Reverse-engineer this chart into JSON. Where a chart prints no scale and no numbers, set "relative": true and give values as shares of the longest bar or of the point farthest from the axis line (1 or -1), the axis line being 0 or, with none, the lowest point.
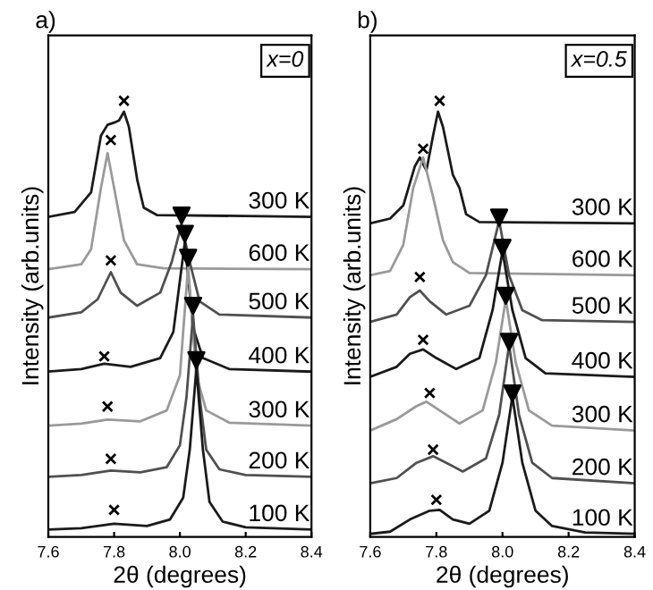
{
  "chart_data": [
    {
      "type": "line",
      "relative": true,
      "title": "a)",
      "xlabel": "2θ (degrees)",
      "ylabel": "Intensity (arb.units)",
      "xlim": [
        7.6,
        8.4
      ],
      "xticks": [
        7.6,
        7.8,
        {
          "value": 8.0,
          "label": "8.0"
        },
        8.2,
        8.4
      ],
      "tick_labels": "x",
      "annotations": [
        "x=0"
      ],
      "series": [
        {
          "name": "300 K",
          "color": "#1a1a1a",
          "x": [
            7.6,
            7.68,
            7.73,
            7.76,
            7.78,
            7.8,
            7.815,
            7.83,
            7.845,
            7.87,
            7.89,
            7.93,
            8.4
          ],
          "values": [
            0.734,
            0.745,
            0.79,
            0.92,
            0.945,
            0.95,
            0.955,
            0.975,
            0.94,
            0.82,
            0.755,
            0.738,
            0.734
          ]
        },
        {
          "name": "600 K",
          "color": "#9a9a9a",
          "x": [
            7.6,
            7.7,
            7.73,
            7.76,
            7.78,
            7.8,
            7.83,
            7.87,
            7.95,
            8.4
          ],
          "values": [
            0.614,
            0.625,
            0.66,
            0.8,
            0.88,
            0.8,
            0.68,
            0.625,
            0.616,
            0.614
          ]
        },
        {
          "name": "500 K",
          "color": "#505050",
          "x": [
            7.6,
            7.7,
            7.75,
            7.79,
            7.82,
            7.87,
            7.94,
            7.975,
            8.005,
            8.03,
            8.06,
            8.12,
            8.4
          ],
          "values": [
            0.503,
            0.515,
            0.545,
            0.607,
            0.56,
            0.53,
            0.56,
            0.63,
            0.717,
            0.63,
            0.54,
            0.51,
            0.503
          ]
        },
        {
          "name": "400 K",
          "color": "#1a1a1a",
          "x": [
            7.6,
            7.7,
            7.77,
            7.85,
            7.94,
            7.98,
            8.015,
            8.04,
            8.07,
            8.15,
            8.4
          ],
          "values": [
            0.379,
            0.385,
            0.397,
            0.39,
            0.41,
            0.47,
            0.676,
            0.48,
            0.41,
            0.385,
            0.379
          ]
        },
        {
          "name": "300 K",
          "color": "#9a9a9a",
          "x": [
            7.6,
            7.7,
            7.78,
            7.88,
            7.96,
            8.0,
            8.025,
            8.05,
            8.08,
            8.15,
            8.4
          ],
          "values": [
            0.255,
            0.26,
            0.269,
            0.265,
            0.29,
            0.37,
            0.621,
            0.37,
            0.29,
            0.262,
            0.255
          ]
        },
        {
          "name": "200 K",
          "color": "#505050",
          "x": [
            7.6,
            7.7,
            7.79,
            7.88,
            7.96,
            8.0,
            8.02,
            8.04,
            8.06,
            8.08,
            8.12,
            8.2,
            8.4
          ],
          "values": [
            0.138,
            0.142,
            0.152,
            0.148,
            0.16,
            0.21,
            0.32,
            0.51,
            0.32,
            0.2,
            0.155,
            0.142,
            0.138
          ]
        },
        {
          "name": "100 K",
          "color": "#1a1a1a",
          "x": [
            7.6,
            7.7,
            7.8,
            7.9,
            7.97,
            8.01,
            8.03,
            8.05,
            8.07,
            8.09,
            8.13,
            8.2,
            8.4
          ],
          "values": [
            0.017,
            0.02,
            0.03,
            0.025,
            0.04,
            0.09,
            0.2,
            0.386,
            0.2,
            0.08,
            0.035,
            0.022,
            0.017
          ]
        },
        {
          "type": "scatter",
          "marker": "cross",
          "color": "#000000",
          "x": [
            7.8,
            7.79,
            7.78,
            7.77,
            7.79,
            7.79,
            7.83
          ],
          "values": [
            0.062,
            0.179,
            0.299,
            0.414,
            0.634,
            0.91,
            1.0
          ]
        },
        {
          "type": "scatter",
          "marker": "triangle",
          "color": "#000000",
          "x": [
            8.05,
            8.04,
            8.025,
            8.015,
            8.005
          ],
          "values": [
            0.405,
            0.53,
            0.64,
            0.695,
            0.737
          ]
        }
      ]
    },
    {
      "type": "line",
      "relative": true,
      "title": "b)",
      "xlabel": "2θ (degrees)",
      "ylabel": "Intensity (arb.units)",
      "xlim": [
        7.6,
        8.4
      ],
      "xticks": [
        7.6,
        7.8,
        {
          "value": 8.0,
          "label": "8.0"
        },
        8.2,
        8.4
      ],
      "tick_labels": "x",
      "annotations": [
        "x=0.5"
      ],
      "series": [
        {
          "name": "300 K",
          "color": "#1a1a1a",
          "x": [
            7.6,
            7.66,
            7.7,
            7.735,
            7.75,
            7.77,
            7.79,
            7.805,
            7.82,
            7.85,
            7.87,
            7.89,
            7.93,
            8.4
          ],
          "values": [
            0.719,
            0.73,
            0.76,
            0.85,
            0.87,
            0.84,
            0.92,
            0.975,
            0.94,
            0.83,
            0.8,
            0.74,
            0.722,
            0.719
          ]
        },
        {
          "name": "600 K",
          "color": "#9a9a9a",
          "x": [
            7.6,
            7.66,
            7.7,
            7.73,
            7.76,
            7.79,
            7.82,
            7.85,
            7.9,
            8.4
          ],
          "values": [
            0.6,
            0.61,
            0.67,
            0.8,
            0.87,
            0.78,
            0.68,
            0.63,
            0.605,
            0.6
          ]
        },
        {
          "name": "500 K",
          "color": "#505050",
          "x": [
            7.6,
            7.68,
            7.72,
            7.75,
            7.78,
            7.83,
            7.9,
            7.95,
            7.99,
            8.02,
            8.06,
            8.12,
            8.4
          ],
          "values": [
            0.493,
            0.51,
            0.55,
            0.565,
            0.54,
            0.51,
            0.53,
            0.6,
            0.725,
            0.6,
            0.52,
            0.497,
            0.493
          ]
        },
        {
          "name": "400 K",
          "color": "#1a1a1a",
          "x": [
            7.6,
            7.68,
            7.72,
            7.76,
            7.8,
            7.86,
            7.93,
            7.97,
            8.0,
            8.03,
            8.07,
            8.13,
            8.4
          ],
          "values": [
            0.367,
            0.39,
            0.42,
            0.43,
            0.41,
            0.385,
            0.41,
            0.52,
            0.655,
            0.52,
            0.41,
            0.375,
            0.367
          ]
        },
        {
          "name": "300 K",
          "color": "#9a9a9a",
          "x": [
            7.6,
            7.68,
            7.74,
            7.77,
            7.81,
            7.87,
            7.94,
            7.98,
            8.01,
            8.04,
            8.08,
            8.15,
            8.4
          ],
          "values": [
            0.244,
            0.27,
            0.3,
            0.31,
            0.29,
            0.26,
            0.29,
            0.4,
            0.545,
            0.4,
            0.29,
            0.255,
            0.244
          ]
        },
        {
          "name": "200 K",
          "color": "#505050",
          "x": [
            7.6,
            7.68,
            7.74,
            7.79,
            7.83,
            7.88,
            7.95,
            7.99,
            8.02,
            8.05,
            8.09,
            8.15,
            8.4
          ],
          "values": [
            0.123,
            0.135,
            0.17,
            0.185,
            0.17,
            0.15,
            0.18,
            0.28,
            0.44,
            0.28,
            0.17,
            0.135,
            0.123
          ]
        },
        {
          "name": "100 K",
          "color": "#1a1a1a",
          "x": [
            7.6,
            7.66,
            7.72,
            7.78,
            7.81,
            7.85,
            7.9,
            7.96,
            8.0,
            8.03,
            8.06,
            8.1,
            8.15,
            8.25,
            8.4
          ],
          "values": [
            0.007,
            0.012,
            0.04,
            0.06,
            0.062,
            0.04,
            0.03,
            0.06,
            0.17,
            0.322,
            0.17,
            0.06,
            0.025,
            0.01,
            0.007
          ]
        },
        {
          "type": "scatter",
          "marker": "cross",
          "color": "#000000",
          "x": [
            7.8,
            7.79,
            7.78,
            7.76,
            7.75,
            7.76,
            7.81
          ],
          "values": [
            0.085,
            0.2,
            0.33,
            0.452,
            0.596,
            0.89,
            1.0
          ]
        },
        {
          "type": "scatter",
          "marker": "triangle",
          "color": "#000000",
          "x": [
            8.03,
            8.02,
            8.01,
            8.0,
            7.99
          ],
          "values": [
            0.329,
            0.447,
            0.553,
            0.663,
            0.732
          ]
        }
      ]
    }
  ]
}
